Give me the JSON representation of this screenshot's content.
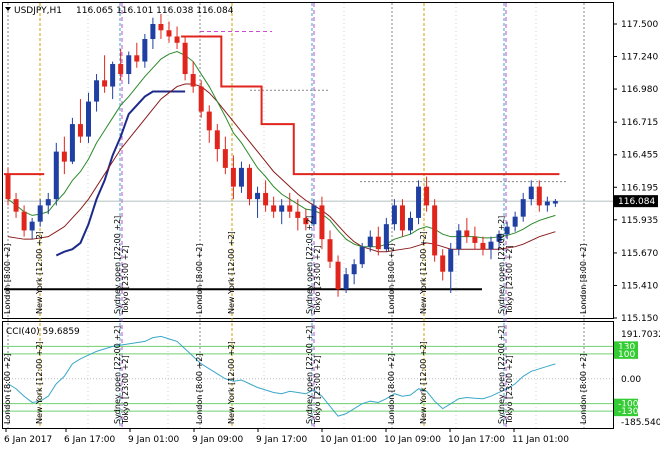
{
  "header": {
    "symbol": "USDJPY,H1",
    "ohlc": "116.065 116.101 116.038 116.084"
  },
  "colors": {
    "bull": "#1f3fa3",
    "bear": "#e0261c",
    "fast_ma": "#2a8a2a",
    "slow_ma": "#8a1a1a",
    "trail": "#e0261c",
    "trail_blue": "#1c2a8a",
    "cci": "#3aa7c8",
    "bid_tag": "#000000"
  },
  "price_axis": {
    "ticks": [
      "117.500",
      "117.240",
      "116.980",
      "116.715",
      "116.455",
      "116.195",
      "115.935",
      "115.670",
      "115.410",
      "115.150"
    ],
    "current_label": "116.084"
  },
  "time_axis": {
    "labels": [
      "6 Jan 2017",
      "6 Jan 17:00",
      "9 Jan 01:00",
      "9 Jan 09:00",
      "9 Jan 17:00",
      "10 Jan 01:00",
      "10 Jan 09:00",
      "10 Jan 17:00",
      "11 Jan 01:00"
    ]
  },
  "sessions": {
    "labels": [
      "London [8:00 +2]",
      "New York [12:00 +2]",
      "Sydney open [22:00 +2]",
      "Tokyo [23:00 +2]",
      "London [8:00 +2]",
      "New York [12:00 +2]",
      "Sydney open [22:00 +2]",
      "Tokyo [23:00 +2]",
      "London [8:00 +2]",
      "New York [12:00 +2]",
      "Sydney open [22:00 +2]",
      "Tokyo [23:00 +2]",
      "London [8:00 +2]"
    ]
  },
  "indicator": {
    "title": "CCI(40) 59.6859",
    "max_label": "191.7032",
    "zero_label": "0.00",
    "min_label": "-185.5405",
    "level_tags": [
      "130",
      "100",
      "-100",
      "-130"
    ]
  },
  "chart_data": {
    "type": "candlestick",
    "title": "USDJPY,H1",
    "xlabel": "",
    "ylabel": "",
    "ylim": [
      115.15,
      117.6
    ],
    "grid": false,
    "candles": [
      {
        "o": 116.3,
        "h": 116.35,
        "l": 116.05,
        "c": 116.1
      },
      {
        "o": 116.1,
        "h": 116.15,
        "l": 115.95,
        "c": 116.0
      },
      {
        "o": 116.0,
        "h": 116.05,
        "l": 115.8,
        "c": 115.85
      },
      {
        "o": 115.85,
        "h": 115.95,
        "l": 115.78,
        "c": 115.92
      },
      {
        "o": 115.92,
        "h": 116.1,
        "l": 115.88,
        "c": 116.05
      },
      {
        "o": 116.05,
        "h": 116.15,
        "l": 115.98,
        "c": 116.1
      },
      {
        "o": 116.1,
        "h": 116.55,
        "l": 116.05,
        "c": 116.48
      },
      {
        "o": 116.48,
        "h": 116.6,
        "l": 116.3,
        "c": 116.4
      },
      {
        "o": 116.4,
        "h": 116.75,
        "l": 116.38,
        "c": 116.7
      },
      {
        "o": 116.7,
        "h": 116.9,
        "l": 116.55,
        "c": 116.6
      },
      {
        "o": 116.6,
        "h": 116.95,
        "l": 116.55,
        "c": 116.88
      },
      {
        "o": 116.88,
        "h": 117.1,
        "l": 116.8,
        "c": 117.05
      },
      {
        "o": 117.05,
        "h": 117.25,
        "l": 116.95,
        "c": 117.0
      },
      {
        "o": 117.0,
        "h": 117.2,
        "l": 116.9,
        "c": 117.18
      },
      {
        "o": 117.18,
        "h": 117.3,
        "l": 117.05,
        "c": 117.1
      },
      {
        "o": 117.1,
        "h": 117.28,
        "l": 117.02,
        "c": 117.25
      },
      {
        "o": 117.25,
        "h": 117.35,
        "l": 117.15,
        "c": 117.2
      },
      {
        "o": 117.2,
        "h": 117.42,
        "l": 117.15,
        "c": 117.38
      },
      {
        "o": 117.38,
        "h": 117.55,
        "l": 117.3,
        "c": 117.5
      },
      {
        "o": 117.5,
        "h": 117.58,
        "l": 117.38,
        "c": 117.45
      },
      {
        "o": 117.45,
        "h": 117.52,
        "l": 117.35,
        "c": 117.4
      },
      {
        "o": 117.4,
        "h": 117.48,
        "l": 117.3,
        "c": 117.35
      },
      {
        "o": 117.35,
        "h": 117.4,
        "l": 117.05,
        "c": 117.1
      },
      {
        "o": 117.1,
        "h": 117.2,
        "l": 116.95,
        "c": 117.0
      },
      {
        "o": 117.0,
        "h": 117.05,
        "l": 116.75,
        "c": 116.8
      },
      {
        "o": 116.8,
        "h": 116.85,
        "l": 116.55,
        "c": 116.65
      },
      {
        "o": 116.65,
        "h": 116.7,
        "l": 116.4,
        "c": 116.5
      },
      {
        "o": 116.5,
        "h": 116.6,
        "l": 116.3,
        "c": 116.35
      },
      {
        "o": 116.35,
        "h": 116.45,
        "l": 116.1,
        "c": 116.2
      },
      {
        "o": 116.2,
        "h": 116.4,
        "l": 116.15,
        "c": 116.35
      },
      {
        "o": 116.35,
        "h": 116.38,
        "l": 116.05,
        "c": 116.1
      },
      {
        "o": 116.1,
        "h": 116.2,
        "l": 115.95,
        "c": 116.15
      },
      {
        "o": 116.15,
        "h": 116.25,
        "l": 116.0,
        "c": 116.05
      },
      {
        "o": 116.05,
        "h": 116.12,
        "l": 115.95,
        "c": 116.0
      },
      {
        "o": 116.0,
        "h": 116.1,
        "l": 115.9,
        "c": 116.05
      },
      {
        "o": 116.05,
        "h": 116.15,
        "l": 115.95,
        "c": 116.0
      },
      {
        "o": 116.0,
        "h": 116.1,
        "l": 115.85,
        "c": 115.95
      },
      {
        "o": 115.95,
        "h": 116.02,
        "l": 115.85,
        "c": 115.9
      },
      {
        "o": 115.9,
        "h": 116.1,
        "l": 115.88,
        "c": 116.05
      },
      {
        "o": 116.05,
        "h": 116.12,
        "l": 115.7,
        "c": 115.78
      },
      {
        "o": 115.78,
        "h": 115.85,
        "l": 115.55,
        "c": 115.6
      },
      {
        "o": 115.6,
        "h": 115.65,
        "l": 115.32,
        "c": 115.38
      },
      {
        "o": 115.38,
        "h": 115.55,
        "l": 115.35,
        "c": 115.5
      },
      {
        "o": 115.5,
        "h": 115.62,
        "l": 115.42,
        "c": 115.58
      },
      {
        "o": 115.58,
        "h": 115.75,
        "l": 115.55,
        "c": 115.72
      },
      {
        "o": 115.72,
        "h": 115.85,
        "l": 115.68,
        "c": 115.8
      },
      {
        "o": 115.8,
        "h": 115.88,
        "l": 115.65,
        "c": 115.7
      },
      {
        "o": 115.7,
        "h": 115.95,
        "l": 115.68,
        "c": 115.9
      },
      {
        "o": 115.9,
        "h": 116.1,
        "l": 115.85,
        "c": 116.05
      },
      {
        "o": 116.05,
        "h": 116.1,
        "l": 115.8,
        "c": 115.85
      },
      {
        "o": 115.85,
        "h": 116.0,
        "l": 115.82,
        "c": 115.95
      },
      {
        "o": 115.95,
        "h": 116.25,
        "l": 115.9,
        "c": 116.2
      },
      {
        "o": 116.2,
        "h": 116.28,
        "l": 116.0,
        "c": 116.05
      },
      {
        "o": 116.05,
        "h": 116.1,
        "l": 115.6,
        "c": 115.65
      },
      {
        "o": 115.65,
        "h": 115.7,
        "l": 115.45,
        "c": 115.52
      },
      {
        "o": 115.52,
        "h": 115.75,
        "l": 115.35,
        "c": 115.7
      },
      {
        "o": 115.7,
        "h": 115.9,
        "l": 115.65,
        "c": 115.85
      },
      {
        "o": 115.85,
        "h": 115.95,
        "l": 115.75,
        "c": 115.8
      },
      {
        "o": 115.8,
        "h": 115.88,
        "l": 115.7,
        "c": 115.75
      },
      {
        "o": 115.75,
        "h": 115.8,
        "l": 115.65,
        "c": 115.7
      },
      {
        "o": 115.7,
        "h": 115.8,
        "l": 115.62,
        "c": 115.76
      },
      {
        "o": 115.76,
        "h": 115.85,
        "l": 115.7,
        "c": 115.82
      },
      {
        "o": 115.82,
        "h": 115.92,
        "l": 115.78,
        "c": 115.88
      },
      {
        "o": 115.88,
        "h": 116.0,
        "l": 115.84,
        "c": 115.96
      },
      {
        "o": 115.96,
        "h": 116.15,
        "l": 115.92,
        "c": 116.1
      },
      {
        "o": 116.1,
        "h": 116.25,
        "l": 116.05,
        "c": 116.2
      },
      {
        "o": 116.2,
        "h": 116.25,
        "l": 116.0,
        "c": 116.05
      },
      {
        "o": 116.05,
        "h": 116.12,
        "l": 116.0,
        "c": 116.08
      },
      {
        "o": 116.065,
        "h": 116.101,
        "l": 116.038,
        "c": 116.084
      }
    ],
    "fast_ma": [
      116.1,
      116.05,
      116.0,
      115.97,
      115.98,
      116.0,
      116.08,
      116.15,
      116.25,
      116.32,
      116.42,
      116.55,
      116.65,
      116.75,
      116.85,
      116.92,
      117.0,
      117.08,
      117.15,
      117.22,
      117.26,
      117.28,
      117.25,
      117.2,
      117.1,
      117.0,
      116.88,
      116.76,
      116.63,
      116.55,
      116.45,
      116.35,
      116.28,
      116.2,
      116.14,
      116.1,
      116.06,
      116.02,
      116.01,
      115.98,
      115.93,
      115.85,
      115.78,
      115.74,
      115.72,
      115.72,
      115.72,
      115.74,
      115.78,
      115.8,
      115.82,
      115.86,
      115.88,
      115.86,
      115.82,
      115.8,
      115.8,
      115.8,
      115.8,
      115.79,
      115.79,
      115.8,
      115.81,
      115.83,
      115.86,
      115.9,
      115.93,
      115.95,
      115.97
    ],
    "slow_ma": [
      115.8,
      115.79,
      115.78,
      115.78,
      115.79,
      115.8,
      115.84,
      115.88,
      115.95,
      116.02,
      116.1,
      116.2,
      116.3,
      116.4,
      116.5,
      116.58,
      116.66,
      116.74,
      116.82,
      116.9,
      116.95,
      117.0,
      117.02,
      117.02,
      117.0,
      116.95,
      116.88,
      116.8,
      116.72,
      116.64,
      116.56,
      116.48,
      116.4,
      116.32,
      116.26,
      116.2,
      116.14,
      116.09,
      116.05,
      116.01,
      115.96,
      115.89,
      115.82,
      115.76,
      115.72,
      115.7,
      115.68,
      115.68,
      115.69,
      115.7,
      115.71,
      115.73,
      115.75,
      115.74,
      115.72,
      115.7,
      115.7,
      115.7,
      115.7,
      115.7,
      115.7,
      115.7,
      115.71,
      115.72,
      115.74,
      115.77,
      115.8,
      115.82,
      115.84
    ],
    "trail_red_upper": [
      116.3,
      116.3,
      116.3,
      116.3,
      116.3,
      null,
      null,
      null,
      null,
      null,
      null,
      null,
      null,
      null,
      null,
      null,
      null,
      null,
      null,
      null,
      null,
      null,
      117.4,
      117.4,
      117.4,
      117.4,
      117.4,
      117.0,
      117.0,
      117.0,
      117.0,
      117.0,
      116.7,
      116.7,
      116.7,
      116.7,
      116.3,
      116.3,
      116.3,
      116.3,
      116.3,
      116.3,
      116.3,
      116.3,
      116.3,
      116.3,
      116.3,
      116.3,
      116.3,
      116.3,
      116.3,
      116.3,
      116.3,
      116.3,
      116.3,
      116.3,
      116.3,
      116.3,
      116.3,
      116.3,
      116.3,
      116.3,
      116.3,
      116.3,
      116.3,
      116.3,
      116.3,
      116.3,
      116.3
    ],
    "trail_blue_lower": [
      null,
      null,
      null,
      null,
      null,
      null,
      115.65,
      115.68,
      115.7,
      115.75,
      115.9,
      116.1,
      116.25,
      116.45,
      116.6,
      116.78,
      116.85,
      116.92,
      116.96,
      116.96,
      116.96,
      116.96,
      116.96,
      null,
      null,
      null,
      null,
      null,
      null,
      null,
      null,
      null,
      null,
      null,
      null,
      null,
      null,
      null,
      null,
      null,
      null,
      null,
      null,
      null,
      null,
      null,
      null,
      null,
      null,
      null,
      null,
      null,
      null,
      null,
      null,
      null,
      null,
      null,
      null,
      null,
      null,
      null,
      null,
      null,
      null,
      null,
      null,
      null,
      null
    ],
    "cci": {
      "name": "CCI(40)",
      "range": [
        -185.5405,
        191.7032
      ],
      "levels": [
        130,
        100,
        -100,
        -130
      ],
      "values": [
        -20,
        -40,
        -70,
        -95,
        -90,
        -70,
        -20,
        10,
        60,
        80,
        95,
        110,
        120,
        130,
        135,
        140,
        145,
        150,
        165,
        170,
        160,
        150,
        120,
        90,
        60,
        40,
        20,
        0,
        -10,
        -5,
        -20,
        -35,
        -45,
        -55,
        -60,
        -50,
        -55,
        -60,
        -45,
        -70,
        -110,
        -150,
        -140,
        -120,
        -100,
        -90,
        -95,
        -80,
        -60,
        -70,
        -65,
        -40,
        -50,
        -90,
        -120,
        -100,
        -80,
        -75,
        -78,
        -80,
        -70,
        -55,
        -40,
        -20,
        10,
        30,
        40,
        50,
        59.6859
      ]
    },
    "price_levels": [
      115.38,
      117.44,
      116.26,
      116.95
    ]
  }
}
